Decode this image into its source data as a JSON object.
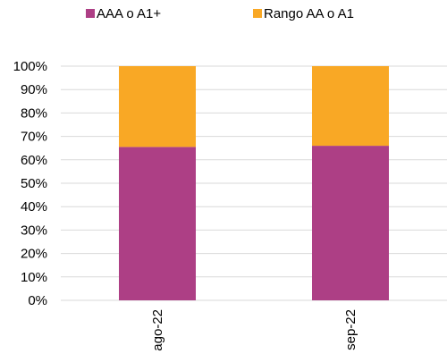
{
  "chart_data": {
    "type": "bar",
    "stacked": true,
    "percent": true,
    "categories": [
      "ago-22",
      "sep-22"
    ],
    "series": [
      {
        "name": "AAA o A1+",
        "color": "#ad3f85",
        "values": [
          65.5,
          66
        ]
      },
      {
        "name": "Rango AA o A1",
        "color": "#f9a825",
        "values": [
          34.5,
          34
        ]
      }
    ],
    "ylim": [
      0,
      100
    ],
    "yticks": [
      "0%",
      "10%",
      "20%",
      "30%",
      "40%",
      "50%",
      "60%",
      "70%",
      "80%",
      "90%",
      "100%"
    ],
    "grid": true,
    "legend": "top"
  }
}
